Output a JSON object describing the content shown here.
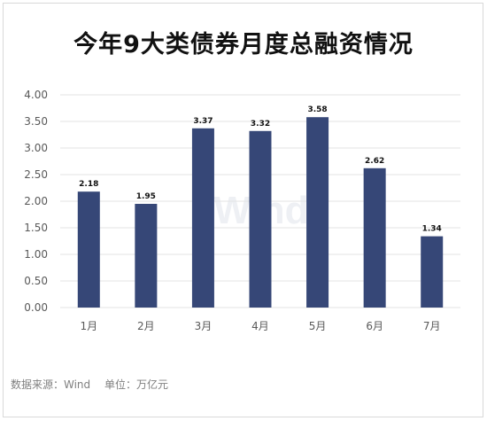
{
  "title": "今年9大类债券月度总融资情况",
  "source": {
    "data_source": "数据来源：Wind",
    "unit": "单位：万亿元"
  },
  "watermark": "Wind",
  "colors": {
    "bar": "#364777",
    "grid": "#e3e3e3",
    "axis_text": "#595959",
    "label_text": "#111111"
  },
  "chart_data": {
    "type": "bar",
    "title": "今年9大类债券月度总融资情况",
    "categories": [
      "1月",
      "2月",
      "3月",
      "4月",
      "5月",
      "6月",
      "7月"
    ],
    "values": [
      2.18,
      1.95,
      3.37,
      3.32,
      3.58,
      2.62,
      1.34
    ],
    "value_labels": [
      "2.18",
      "1.95",
      "3.37",
      "3.32",
      "3.58",
      "2.62",
      "1.34"
    ],
    "ylim": [
      0,
      4
    ],
    "yticks": [
      "0.00",
      "0.50",
      "1.00",
      "1.50",
      "2.00",
      "2.50",
      "3.00",
      "3.50",
      "4.00"
    ],
    "ytick_values": [
      0,
      0.5,
      1,
      1.5,
      2,
      2.5,
      3,
      3.5,
      4
    ],
    "grid": true,
    "legend": "none",
    "xlabel": "",
    "ylabel": ""
  }
}
